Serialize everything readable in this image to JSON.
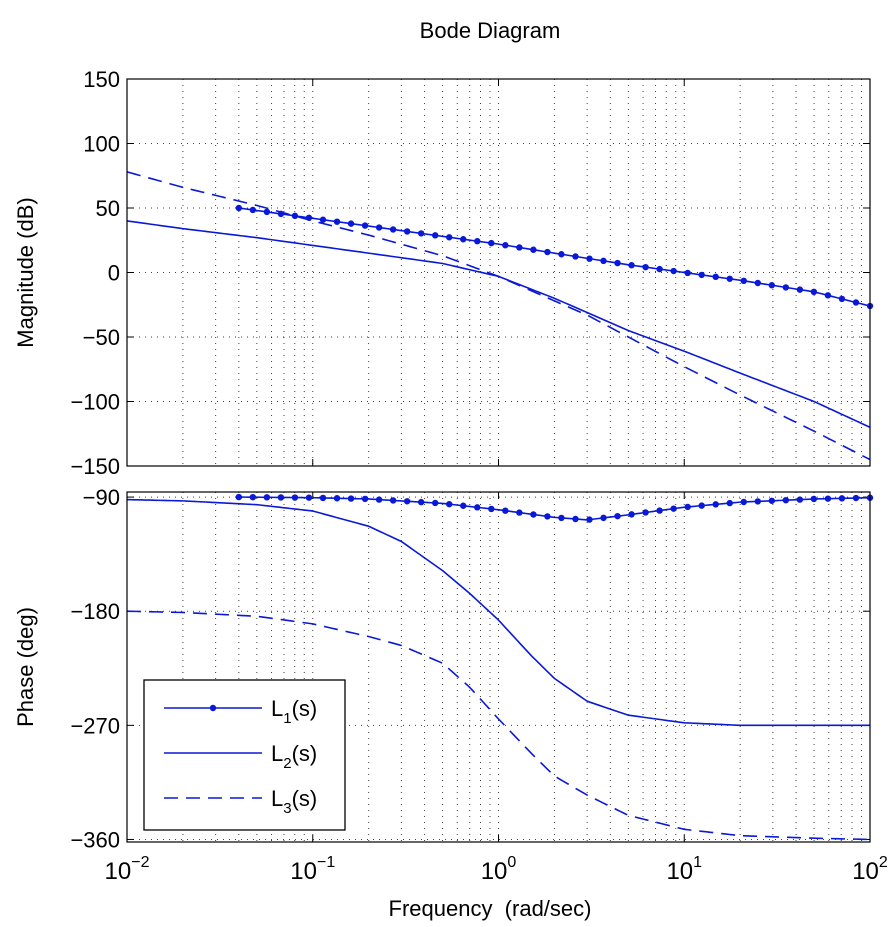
{
  "chart_data": {
    "type": "line",
    "title": "Bode Diagram",
    "xlabel": "Frequency  (rad/sec)",
    "xscale": "log",
    "xlim": [
      0.01,
      100
    ],
    "x_ticks": [
      {
        "base": "10",
        "exp": "−2"
      },
      {
        "base": "10",
        "exp": "−1"
      },
      {
        "base": "10",
        "exp": "0"
      },
      {
        "base": "10",
        "exp": "1"
      },
      {
        "base": "10",
        "exp": "2"
      }
    ],
    "grid": true,
    "line_color": "#0a19d6",
    "magnitude": {
      "ylabel": "Magnitude (dB)",
      "ylim": [
        -150,
        150
      ],
      "yticks": [
        "150",
        "100",
        "50",
        "0",
        "−50",
        "−100",
        "−150"
      ],
      "series": [
        {
          "name": "L1(s)",
          "style": "solid-dots",
          "x": [
            0.04,
            0.1,
            0.2,
            0.5,
            1,
            2,
            3,
            5,
            10,
            20,
            50,
            100
          ],
          "y": [
            50,
            42,
            36,
            28,
            22,
            15,
            11,
            6,
            0,
            -6,
            -15,
            -26
          ]
        },
        {
          "name": "L2(s)",
          "style": "solid",
          "x": [
            0.01,
            0.02,
            0.05,
            0.1,
            0.2,
            0.5,
            1,
            2,
            3,
            5,
            10,
            20,
            50,
            100
          ],
          "y": [
            40,
            34,
            27,
            21,
            15,
            7,
            -3,
            -20,
            -31,
            -45,
            -61,
            -78,
            -100,
            -120
          ]
        },
        {
          "name": "L3(s)",
          "style": "dashed",
          "x": [
            0.01,
            0.02,
            0.05,
            0.1,
            0.2,
            0.5,
            1,
            2,
            3,
            5,
            10,
            20,
            50,
            100
          ],
          "y": [
            78,
            66,
            52,
            40,
            29,
            13,
            -3,
            -22,
            -33,
            -50,
            -73,
            -95,
            -123,
            -145
          ]
        }
      ]
    },
    "phase": {
      "ylabel": "Phase (deg)",
      "ylim": [
        -362,
        -86
      ],
      "yticks": [
        "−90",
        "−180",
        "−270",
        "−360"
      ],
      "series": [
        {
          "name": "L1(s)",
          "style": "solid-dots",
          "x": [
            0.04,
            0.1,
            0.2,
            0.5,
            1,
            2,
            3,
            5,
            10,
            20,
            50,
            100
          ],
          "y": [
            -90,
            -90.5,
            -91.5,
            -95,
            -100,
            -106,
            -108,
            -104,
            -98,
            -94,
            -91.5,
            -90.5
          ]
        },
        {
          "name": "L2(s)",
          "style": "solid",
          "x": [
            0.01,
            0.02,
            0.05,
            0.1,
            0.2,
            0.3,
            0.5,
            0.7,
            1,
            1.5,
            2,
            3,
            5,
            10,
            20,
            50,
            100
          ],
          "y": [
            -92,
            -93,
            -96,
            -101,
            -113,
            -125,
            -148,
            -166,
            -187,
            -215,
            -233,
            -251,
            -262,
            -268,
            -270,
            -270,
            -270
          ]
        },
        {
          "name": "L3(s)",
          "style": "dashed",
          "x": [
            0.01,
            0.02,
            0.05,
            0.1,
            0.2,
            0.3,
            0.5,
            0.7,
            1,
            1.5,
            2,
            3,
            5,
            10,
            20,
            50,
            100
          ],
          "y": [
            -180,
            -181,
            -184,
            -190,
            -200,
            -207,
            -221,
            -240,
            -265,
            -292,
            -310,
            -325,
            -341,
            -352,
            -357,
            -359,
            -360
          ]
        }
      ]
    },
    "legend": {
      "position": "bottom-left of phase panel",
      "entries": [
        {
          "main": "L",
          "sub": "1",
          "tail": "(s)",
          "style": "solid-dots"
        },
        {
          "main": "L",
          "sub": "2",
          "tail": "(s)",
          "style": "solid"
        },
        {
          "main": "L",
          "sub": "3",
          "tail": "(s)",
          "style": "dashed"
        }
      ]
    }
  }
}
